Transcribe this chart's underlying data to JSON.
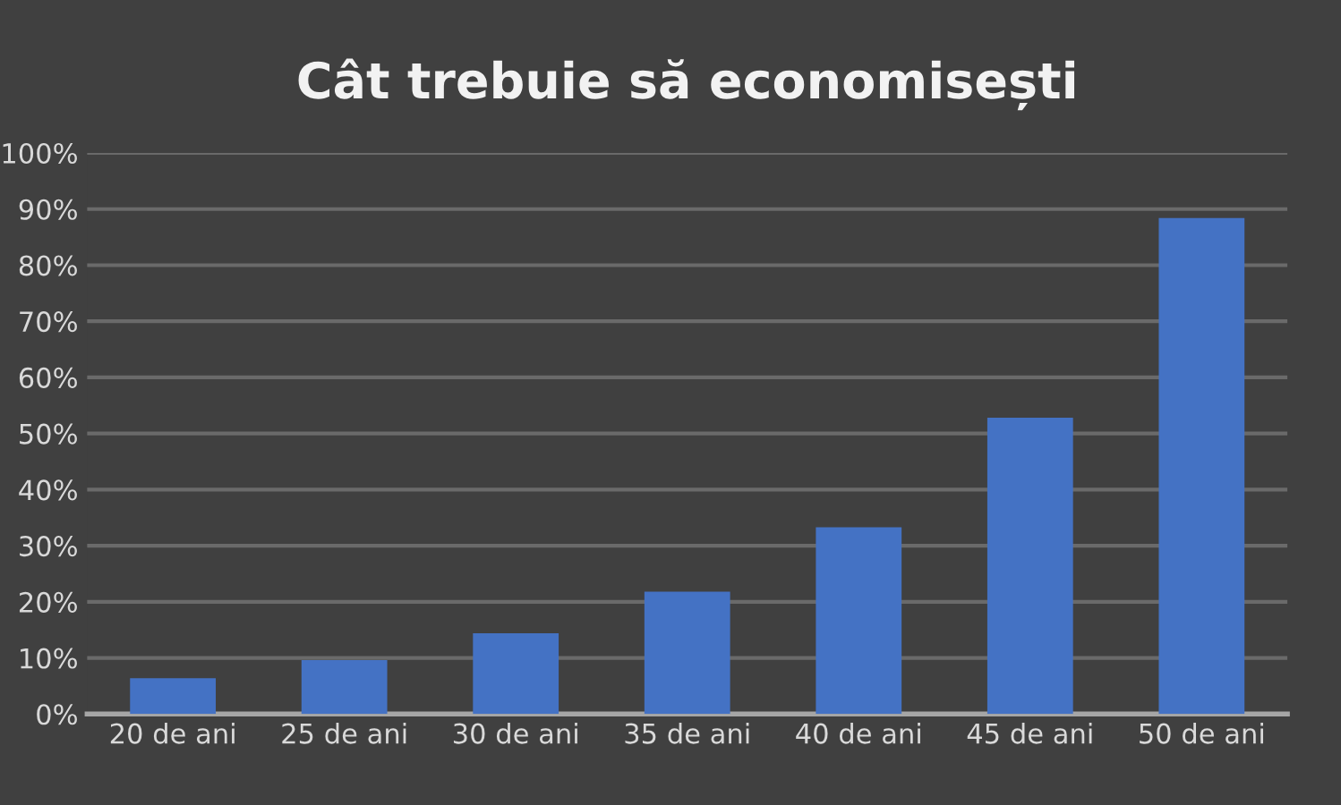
{
  "chart_data": {
    "type": "bar",
    "title": "Cât trebuie să economisești",
    "categories": [
      "20 de ani",
      "25 de ani",
      "30 de ani",
      "35 de ani",
      "40 de ani",
      "45 de ani",
      "50 de ani"
    ],
    "values": [
      6.4,
      9.6,
      14.4,
      21.8,
      33.3,
      52.8,
      88.4
    ],
    "color": "#4472c4",
    "ylim": [
      0,
      100
    ],
    "yticks": [
      {
        "value": 0,
        "label": "0%"
      },
      {
        "value": 10,
        "label": "10%"
      },
      {
        "value": 20,
        "label": "20%"
      },
      {
        "value": 30,
        "label": "30%"
      },
      {
        "value": 40,
        "label": "40%"
      },
      {
        "value": 50,
        "label": "50%"
      },
      {
        "value": 60,
        "label": "60%"
      },
      {
        "value": 70,
        "label": "70%"
      },
      {
        "value": 80,
        "label": "80%"
      },
      {
        "value": 90,
        "label": "90%"
      },
      {
        "value": 100,
        "label": "100%"
      }
    ],
    "grid": "y"
  }
}
